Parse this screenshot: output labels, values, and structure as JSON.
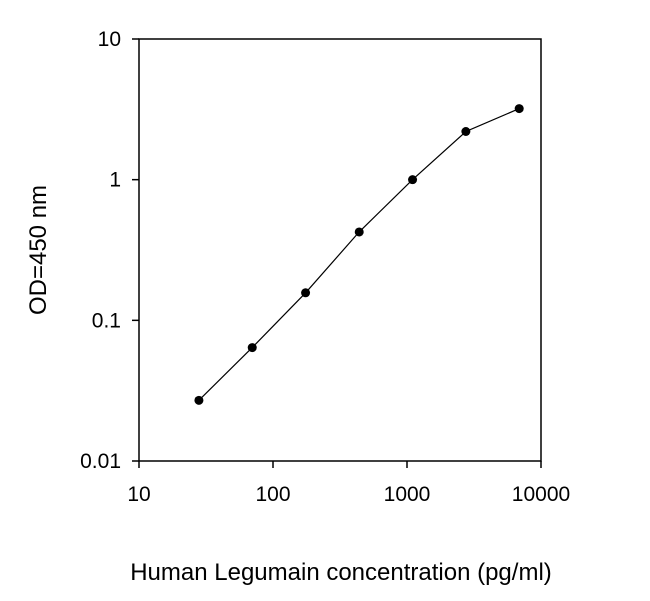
{
  "chart_data": {
    "type": "line",
    "xlabel": "Human Legumain concentration (pg/ml)",
    "ylabel": "OD=450 nm",
    "xscale": "log",
    "yscale": "log",
    "xlim": [
      10,
      10000
    ],
    "ylim": [
      0.01,
      10
    ],
    "grid": false,
    "x_ticks": [
      10,
      100,
      1000,
      10000
    ],
    "x_tick_labels": [
      "10",
      "100",
      "1000",
      "10000"
    ],
    "y_ticks": [
      0.01,
      0.1,
      1,
      10
    ],
    "y_tick_labels": [
      "0.01",
      "0.1",
      "1",
      "10"
    ],
    "line_color": "#000000",
    "marker": "filled-circle",
    "series": [
      {
        "x": [
          28,
          70,
          175,
          440,
          1100,
          2750,
          6875
        ],
        "y": [
          0.027,
          0.064,
          0.157,
          0.425,
          1.0,
          2.2,
          3.2
        ]
      }
    ]
  }
}
